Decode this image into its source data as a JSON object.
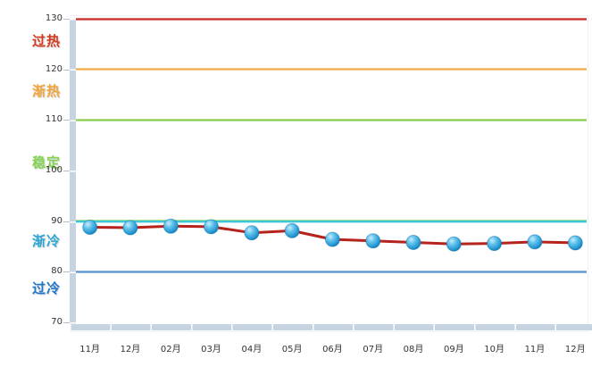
{
  "chart_data": {
    "type": "line",
    "categories": [
      "11月",
      "12月",
      "02月",
      "03月",
      "04月",
      "05月",
      "06月",
      "07月",
      "08月",
      "09月",
      "10月",
      "11月",
      "12月"
    ],
    "values": [
      88.8,
      88.7,
      89.0,
      88.9,
      87.7,
      88.1,
      86.4,
      86.1,
      85.8,
      85.5,
      85.6,
      85.9,
      85.7
    ],
    "ylim": [
      70,
      130
    ],
    "yticks": [
      130,
      120,
      110,
      100,
      90,
      80,
      70
    ],
    "grid": false,
    "legend": "none",
    "series_line_color": "#b5231c",
    "marker_color": "#2d9fd9",
    "axis_bar_color": "#c6d4e2",
    "reference_lines": [
      {
        "value": 130,
        "color": "#c9302c"
      },
      {
        "value": 120,
        "color": "#eeae4e"
      },
      {
        "value": 110,
        "color": "#8ccf55"
      },
      {
        "value": 90,
        "color": "#3cc6d8",
        "edge_color": "#abdc90"
      },
      {
        "value": 80,
        "color": "#5793d2"
      }
    ],
    "zone_labels": [
      {
        "label": "过热",
        "color": "#d43a1e",
        "at_value": 126
      },
      {
        "label": "渐热",
        "color": "#f0a63c",
        "at_value": 116
      },
      {
        "label": "稳定",
        "color": "#86d254",
        "at_value": 102
      },
      {
        "label": "渐冷",
        "color": "#2fa8d5",
        "at_value": 86.5
      },
      {
        "label": "过冷",
        "color": "#2277c8",
        "at_value": 77
      }
    ]
  }
}
